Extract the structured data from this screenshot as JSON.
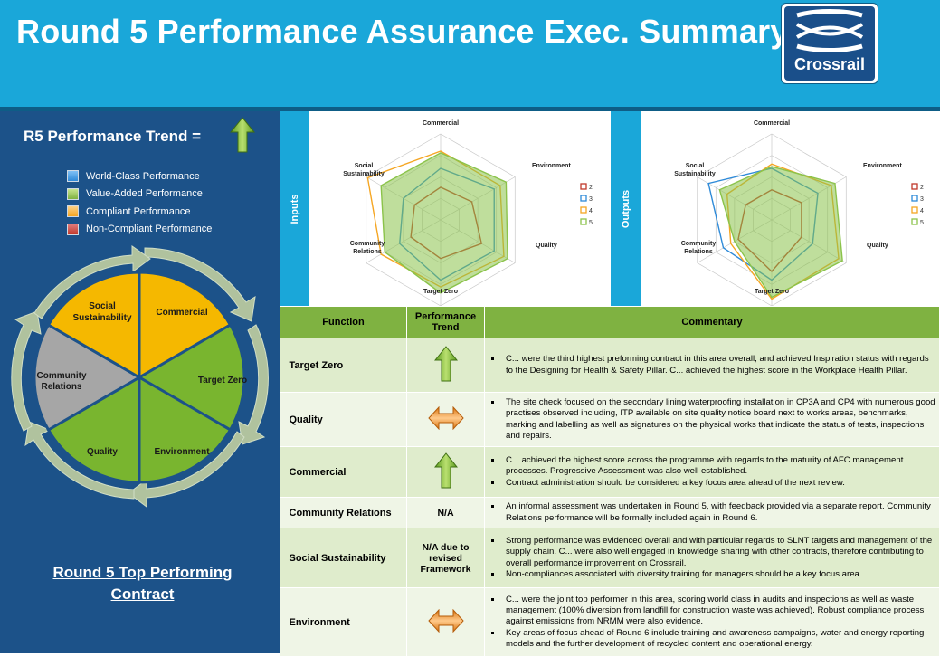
{
  "header": {
    "title": "Round 5 Performance Assurance Exec. Summary",
    "logo_text": "Crossrail"
  },
  "colors": {
    "world_class": "#2e8ad8",
    "value_added": "#8bc34a",
    "compliant": "#f5a623",
    "non_compliant": "#c0392b",
    "header_bg": "#1aa7d9",
    "panel_bg": "#1c5289",
    "table_header": "#7fb241"
  },
  "left_panel": {
    "trend_label": "R5 Performance Trend =",
    "trend_icon": "up-arrow-icon",
    "legend": [
      {
        "label": "World-Class Performance",
        "color": "#2e8ad8"
      },
      {
        "label": "Value-Added Performance",
        "color": "#8bc34a"
      },
      {
        "label": "Compliant  Performance",
        "color": "#f5a623"
      },
      {
        "label": "Non-Compliant  Performance",
        "color": "#c0392b"
      }
    ],
    "wheel_segments": [
      {
        "label": "Commercial",
        "status": "compliant",
        "color": "#f5b800"
      },
      {
        "label": "Target Zero",
        "status": "value-added",
        "color": "#79b52f"
      },
      {
        "label": "Environment",
        "status": "value-added",
        "color": "#79b52f"
      },
      {
        "label": "Quality",
        "status": "value-added",
        "color": "#79b52f"
      },
      {
        "label": "Community Relations",
        "label_lines": [
          "Community",
          "Relations"
        ],
        "status": "not-assessed",
        "color": "#a6a6a6"
      },
      {
        "label": "Social Sustainability",
        "label_lines": [
          "Social",
          "Sustainability"
        ],
        "status": "compliant",
        "color": "#f5b800"
      }
    ],
    "contract_title_line1": "Round 5 Top Performing",
    "contract_title_line2": "Contract"
  },
  "radars": [
    {
      "tag": "Inputs",
      "axes": [
        "Commercial",
        "Environment",
        "Quality",
        "Target Zero",
        "Community Relations",
        "Social Sustainability"
      ],
      "legend": [
        "2",
        "3",
        "4",
        "5"
      ],
      "series_colors": [
        "#c0392b",
        "#2e8ad8",
        "#f5a623",
        "#8bc34a"
      ]
    },
    {
      "tag": "Outputs",
      "axes": [
        "Commercial",
        "Environment",
        "Quality",
        "Target Zero",
        "Community Relations",
        "Social Sustainability"
      ],
      "legend": [
        "2",
        "3",
        "4",
        "5"
      ],
      "series_colors": [
        "#c0392b",
        "#2e8ad8",
        "#f5a623",
        "#8bc34a"
      ]
    }
  ],
  "table": {
    "headers": {
      "function": "Function",
      "trend": "Performance Trend",
      "commentary": "Commentary"
    },
    "rows": [
      {
        "function": "Target Zero",
        "trend_icon": "up-arrow-icon",
        "trend_text": "",
        "commentary": [
          "C... were the third highest preforming contract in this area overall, and achieved Inspiration status with regards to the Designing for Health & Safety Pillar. C... achieved the highest score in the Workplace Health Pillar."
        ]
      },
      {
        "function": "Quality",
        "trend_icon": "left-right-arrow-icon",
        "trend_text": "",
        "commentary": [
          "The site check focused on the secondary lining waterproofing installation in CP3A and CP4 with numerous good practises observed including, ITP available on site quality notice board next to works areas, benchmarks, marking and labelling as well as signatures on the physical works that indicate the status of tests, inspections and repairs."
        ]
      },
      {
        "function": "Commercial",
        "trend_icon": "up-arrow-icon",
        "trend_text": "",
        "commentary": [
          "C... achieved the highest score across the programme with regards to the maturity of AFC management processes. Progressive Assessment was also well established.",
          "Contract administration should be considered a key focus area ahead of the next review."
        ]
      },
      {
        "function": "Community Relations",
        "trend_icon": "",
        "trend_text": "N/A",
        "commentary": [
          "An informal assessment was undertaken in Round 5, with feedback provided via a separate report. Community Relations performance will be formally included again in Round 6."
        ]
      },
      {
        "function": "Social Sustainability",
        "trend_icon": "",
        "trend_text": "N/A due to revised Framework",
        "commentary": [
          "Strong performance was evidenced overall and with particular regards to SLNT targets and management of the supply chain. C... were also well engaged in knowledge sharing with other contracts, therefore contributing to overall performance improvement on Crossrail.",
          "Non-compliances associated with diversity training for managers should be a key focus area."
        ]
      },
      {
        "function": "Environment",
        "trend_icon": "left-right-arrow-icon",
        "trend_text": "",
        "commentary": [
          "C... were the joint top performer in this area, scoring world class in audits and inspections as well as waste management (100% diversion from landfill for construction waste was achieved). Robust compliance process against emissions from NRMM were also evidence.",
          "Key areas of focus ahead of Round 6 include training and awareness campaigns, water and energy reporting models and the further development of recycled content and operational energy."
        ]
      }
    ]
  }
}
